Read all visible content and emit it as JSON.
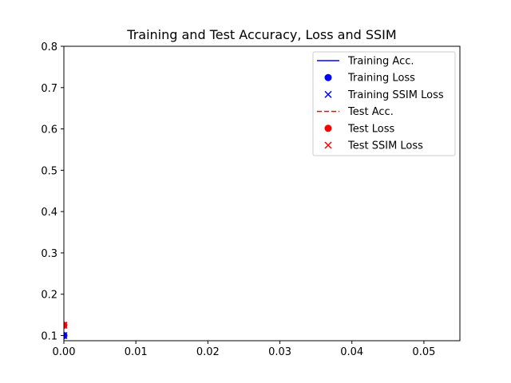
{
  "chart_data": {
    "type": "line",
    "title": "Training and Test Accuracy, Loss and SSIM",
    "xlabel": "",
    "ylabel": "",
    "xlim": [
      0,
      0.055
    ],
    "ylim": [
      0.0875,
      0.8
    ],
    "xticks": [
      0.0,
      0.01,
      0.02,
      0.03,
      0.04,
      0.05
    ],
    "xtick_labels": [
      "0.00",
      "0.01",
      "0.02",
      "0.03",
      "0.04",
      "0.05"
    ],
    "yticks": [
      0.1,
      0.2,
      0.3,
      0.4,
      0.5,
      0.6,
      0.7,
      0.8
    ],
    "ytick_labels": [
      "0.1",
      "0.2",
      "0.3",
      "0.4",
      "0.5",
      "0.6",
      "0.7",
      "0.8"
    ],
    "grid": false,
    "legend_position": "top-right",
    "series": [
      {
        "name": "Training Acc.",
        "style": "line",
        "dash": "solid",
        "color": "#0000ff",
        "x": [
          0
        ],
        "y": [
          0.1
        ]
      },
      {
        "name": "Training Loss",
        "style": "marker",
        "marker": "circle",
        "color": "#0000ff",
        "x": [
          0
        ],
        "y": [
          0.1
        ]
      },
      {
        "name": "Training SSIM Loss",
        "style": "marker",
        "marker": "x",
        "color": "#0000ff",
        "x": [
          0
        ],
        "y": [
          0.1
        ]
      },
      {
        "name": "Test Acc.",
        "style": "line",
        "dash": "dashed",
        "color": "#ff0000",
        "x": [
          0
        ],
        "y": [
          0.125
        ]
      },
      {
        "name": "Test Loss",
        "style": "marker",
        "marker": "circle",
        "color": "#ff0000",
        "x": [
          0
        ],
        "y": [
          0.125
        ]
      },
      {
        "name": "Test SSIM Loss",
        "style": "marker",
        "marker": "x",
        "color": "#ff0000",
        "x": [
          0
        ],
        "y": [
          0.125
        ]
      }
    ]
  }
}
